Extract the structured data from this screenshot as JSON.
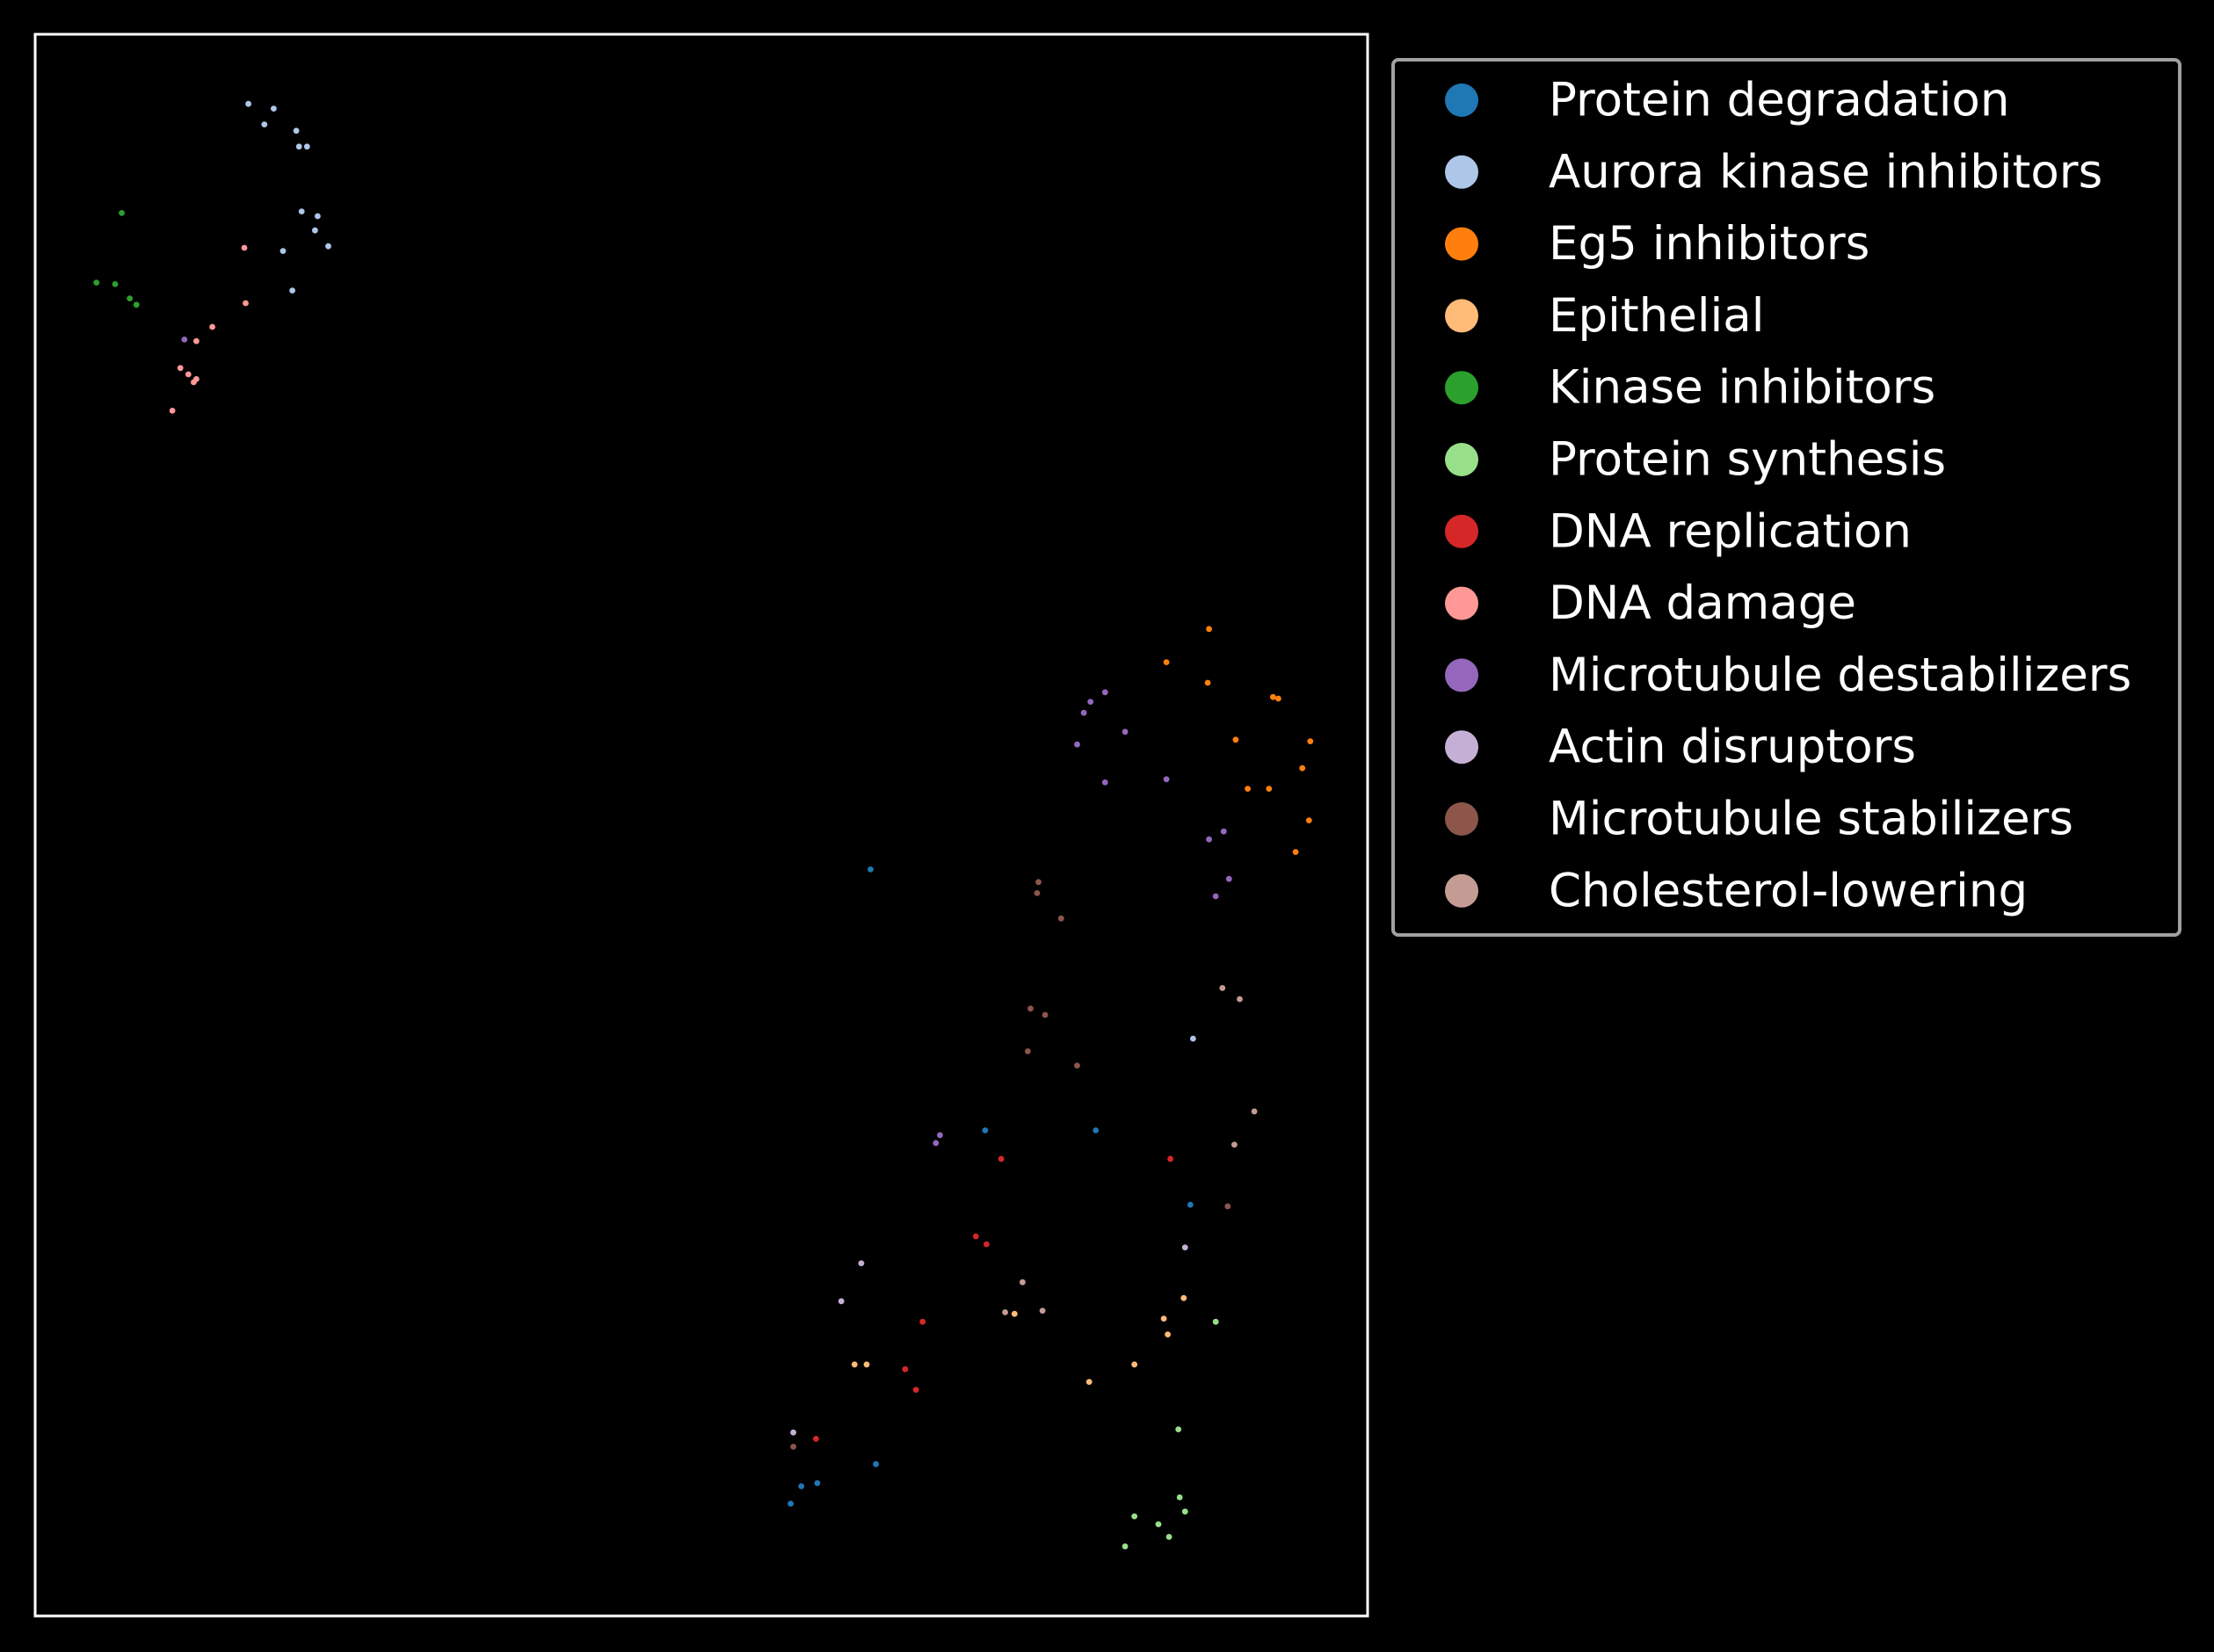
{
  "chart_data": {
    "type": "scatter",
    "title": "",
    "xlabel": "",
    "ylabel": "",
    "xlim": [
      0,
      100
    ],
    "ylim": [
      0,
      100
    ],
    "grid": false,
    "axes_ticks": false,
    "legend_placement": "outside-top-right",
    "series": [
      {
        "name": "Protein degradation",
        "color": "#1f77b4",
        "points": [
          [
            71.3,
            30.7
          ],
          [
            79.6,
            30.7
          ],
          [
            86.7,
            26.0
          ],
          [
            62.7,
            47.2
          ],
          [
            56.7,
            7.1
          ],
          [
            63.1,
            9.6
          ],
          [
            58.7,
            8.4
          ],
          [
            57.5,
            8.2
          ]
        ]
      },
      {
        "name": "Aurora kinase inhibitors",
        "color": "#aec7e8",
        "points": [
          [
            16.0,
            95.6
          ],
          [
            17.2,
            94.3
          ],
          [
            17.9,
            95.3
          ],
          [
            19.8,
            92.9
          ],
          [
            20.4,
            92.9
          ],
          [
            19.6,
            93.9
          ],
          [
            20.0,
            88.8
          ],
          [
            21.2,
            88.5
          ],
          [
            22.0,
            86.6
          ],
          [
            21.0,
            87.6
          ],
          [
            18.6,
            86.3
          ],
          [
            19.3,
            83.8
          ],
          [
            86.9,
            36.5
          ]
        ]
      },
      {
        "name": "Eg5 inhibitors",
        "color": "#ff7f0e",
        "points": [
          [
            88.1,
            62.4
          ],
          [
            84.9,
            60.3
          ],
          [
            88.0,
            59.0
          ],
          [
            92.9,
            58.1
          ],
          [
            93.3,
            58.0
          ],
          [
            90.1,
            55.4
          ],
          [
            95.7,
            55.3
          ],
          [
            95.1,
            53.6
          ],
          [
            91.0,
            52.3
          ],
          [
            92.6,
            52.3
          ],
          [
            95.6,
            50.3
          ],
          [
            94.6,
            48.3
          ]
        ]
      },
      {
        "name": "Epithelial",
        "color": "#ffbb78",
        "points": [
          [
            73.5,
            19.1
          ],
          [
            84.7,
            18.8
          ],
          [
            86.2,
            20.1
          ],
          [
            85.0,
            17.8
          ],
          [
            62.4,
            15.9
          ],
          [
            61.5,
            15.9
          ],
          [
            82.5,
            15.9
          ],
          [
            79.1,
            14.8
          ]
        ]
      },
      {
        "name": "Kinase inhibitors",
        "color": "#2ca02c",
        "points": [
          [
            6.5,
            88.7
          ],
          [
            6.0,
            84.2
          ],
          [
            4.6,
            84.3
          ],
          [
            7.1,
            83.3
          ],
          [
            7.6,
            82.9
          ]
        ]
      },
      {
        "name": "Protein synthesis",
        "color": "#98df8a",
        "points": [
          [
            88.6,
            18.6
          ],
          [
            85.8,
            11.8
          ],
          [
            85.9,
            7.5
          ],
          [
            86.3,
            6.6
          ],
          [
            82.5,
            6.3
          ],
          [
            84.3,
            5.8
          ],
          [
            85.1,
            5.0
          ],
          [
            81.8,
            4.4
          ]
        ]
      },
      {
        "name": "DNA replication",
        "color": "#d62728",
        "points": [
          [
            72.5,
            28.9
          ],
          [
            85.2,
            28.9
          ],
          [
            70.6,
            24.0
          ],
          [
            71.4,
            23.5
          ],
          [
            66.6,
            18.6
          ],
          [
            65.3,
            15.6
          ],
          [
            66.1,
            14.3
          ],
          [
            58.6,
            11.2
          ]
        ]
      },
      {
        "name": "DNA damage",
        "color": "#ff9896",
        "points": [
          [
            15.7,
            86.5
          ],
          [
            15.8,
            83.0
          ],
          [
            13.3,
            81.5
          ],
          [
            12.1,
            80.6
          ],
          [
            10.9,
            78.9
          ],
          [
            11.5,
            78.5
          ],
          [
            12.1,
            78.2
          ],
          [
            11.9,
            78.0
          ],
          [
            10.3,
            76.2
          ]
        ]
      },
      {
        "name": "Microtubule destabilizers",
        "color": "#9467bd",
        "points": [
          [
            11.2,
            80.7
          ],
          [
            80.3,
            58.4
          ],
          [
            79.2,
            57.8
          ],
          [
            78.7,
            57.1
          ],
          [
            81.8,
            55.9
          ],
          [
            78.2,
            55.1
          ],
          [
            80.3,
            52.7
          ],
          [
            84.9,
            52.9
          ],
          [
            89.2,
            49.6
          ],
          [
            88.1,
            49.1
          ],
          [
            89.6,
            46.6
          ],
          [
            88.6,
            45.5
          ],
          [
            67.9,
            30.4
          ],
          [
            67.6,
            29.9
          ]
        ]
      },
      {
        "name": "Actin disruptors",
        "color": "#c5b0d5",
        "points": [
          [
            62.0,
            22.3
          ],
          [
            60.5,
            19.9
          ],
          [
            86.3,
            23.3
          ],
          [
            56.9,
            11.6
          ]
        ]
      },
      {
        "name": "Microtubule stabilizers",
        "color": "#8c564b",
        "points": [
          [
            75.3,
            46.4
          ],
          [
            75.2,
            45.7
          ],
          [
            77.0,
            44.1
          ],
          [
            74.7,
            38.4
          ],
          [
            75.8,
            38.0
          ],
          [
            74.5,
            35.7
          ],
          [
            78.2,
            34.8
          ],
          [
            89.5,
            25.9
          ],
          [
            56.9,
            10.7
          ]
        ]
      },
      {
        "name": "Cholesterol-lowering",
        "color": "#c49c94",
        "points": [
          [
            89.1,
            39.7
          ],
          [
            90.4,
            39.0
          ],
          [
            91.5,
            31.9
          ],
          [
            90.0,
            29.8
          ],
          [
            74.1,
            21.1
          ],
          [
            72.8,
            19.2
          ],
          [
            75.6,
            19.3
          ]
        ]
      }
    ]
  }
}
